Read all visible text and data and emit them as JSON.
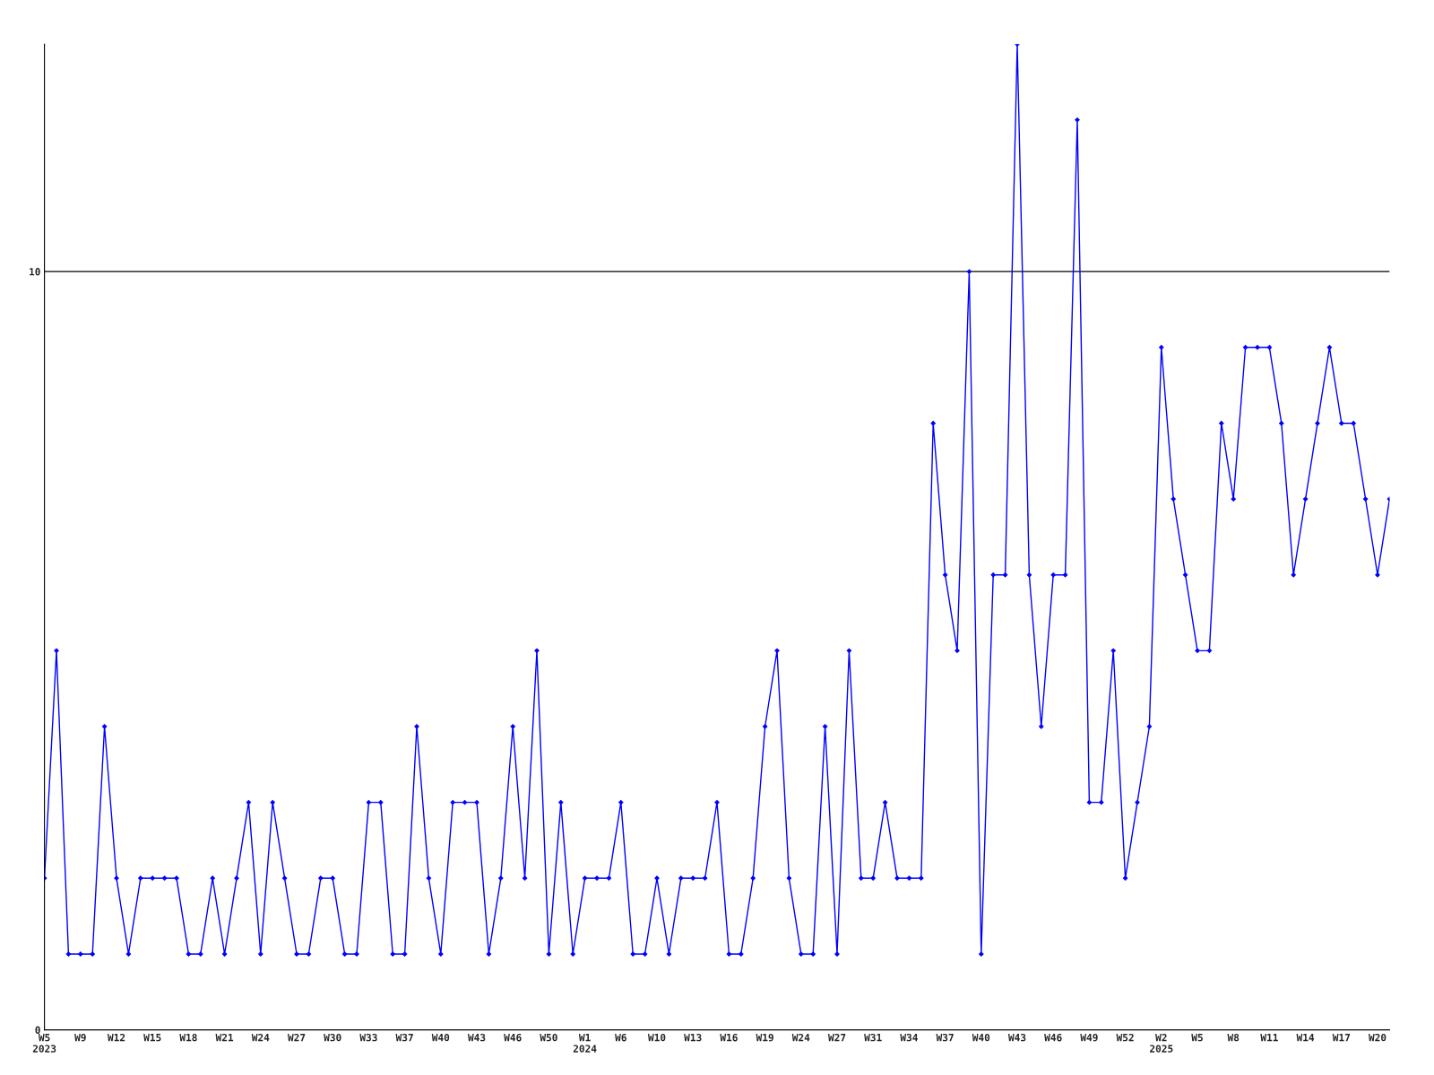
{
  "chart_data": {
    "type": "line",
    "categories": [
      "W5\n2023",
      null,
      null,
      "W9",
      null,
      null,
      "W12",
      null,
      null,
      "W15",
      null,
      null,
      "W18",
      null,
      null,
      "W21",
      null,
      null,
      "W24",
      null,
      null,
      "W27",
      null,
      null,
      "W30",
      null,
      null,
      "W33",
      null,
      null,
      "W37",
      null,
      null,
      "W40",
      null,
      null,
      "W43",
      null,
      null,
      "W46",
      null,
      null,
      "W50",
      null,
      null,
      "W1\n2024",
      null,
      null,
      "W6",
      null,
      null,
      "W10",
      null,
      null,
      "W13",
      null,
      null,
      "W16",
      null,
      null,
      "W19",
      null,
      null,
      "W24",
      null,
      null,
      "W27",
      null,
      null,
      "W31",
      null,
      null,
      "W34",
      null,
      null,
      "W37",
      null,
      null,
      "W40",
      null,
      null,
      "W43",
      null,
      null,
      "W46",
      null,
      null,
      "W49",
      null,
      null,
      "W52",
      null,
      null,
      "W2\n2025",
      null,
      null,
      "W5",
      null,
      null,
      "W8",
      null,
      null,
      "W11",
      null,
      null,
      "W14",
      null,
      null,
      "W17",
      null,
      null,
      "W20",
      null
    ],
    "series": [
      {
        "color": "#0000ff",
        "values": [
          2,
          5,
          1,
          1,
          1,
          4,
          2,
          1,
          2,
          2,
          2,
          2,
          1,
          1,
          2,
          1,
          2,
          3,
          1,
          3,
          2,
          1,
          1,
          2,
          2,
          1,
          1,
          3,
          3,
          1,
          1,
          4,
          2,
          1,
          3,
          3,
          3,
          1,
          2,
          4,
          2,
          5,
          1,
          3,
          1,
          2,
          2,
          2,
          3,
          1,
          1,
          2,
          1,
          2,
          2,
          2,
          3,
          1,
          1,
          2,
          4,
          5,
          2,
          1,
          1,
          4,
          1,
          5,
          2,
          2,
          3,
          2,
          2,
          2,
          8,
          6,
          5,
          10,
          1,
          6,
          6,
          13,
          6,
          4,
          6,
          6,
          12,
          3,
          3,
          5,
          2,
          3,
          4,
          9,
          7,
          6,
          5,
          5,
          8,
          7,
          9,
          9,
          9,
          8,
          6,
          7,
          8,
          9,
          8,
          8,
          7,
          6,
          7
        ]
      }
    ],
    "ylim": [
      0,
      13
    ],
    "yticks": [
      0,
      10
    ],
    "grid": "y",
    "marker": "diamond",
    "line_style": "solid"
  }
}
